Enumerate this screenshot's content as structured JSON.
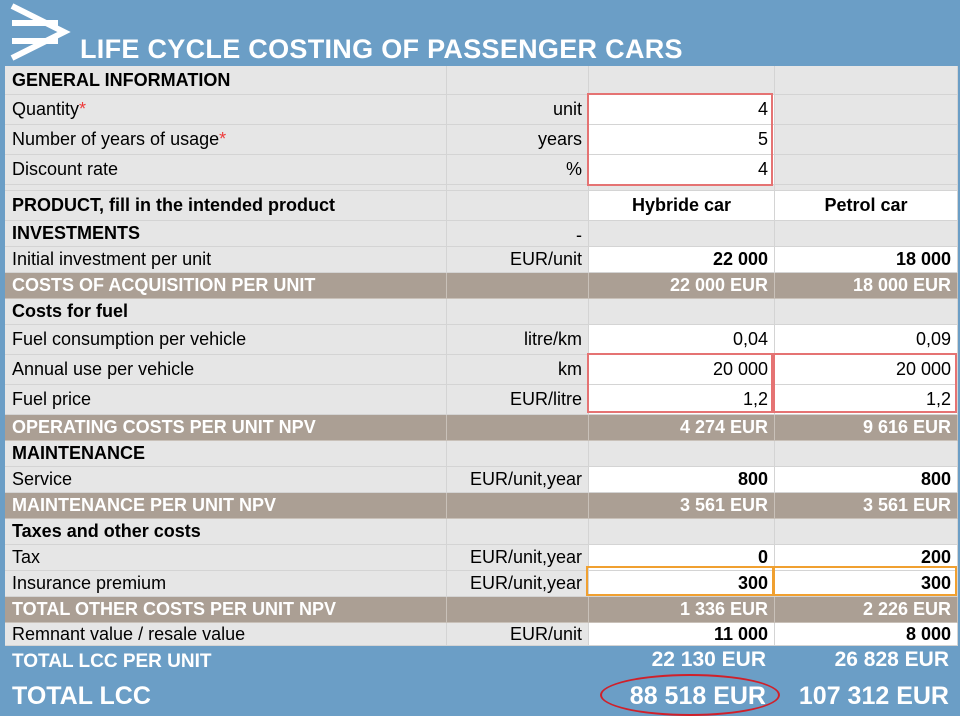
{
  "title": "LIFE CYCLE COSTING OF PASSENGER CARS",
  "rows": {
    "general": {
      "label": "GENERAL INFORMATION"
    },
    "quantity": {
      "label": "Quantity",
      "star": "*",
      "unit": "unit",
      "value": "4"
    },
    "years": {
      "label": "Number of years of usage",
      "star": "*",
      "unit": "years",
      "value": "5"
    },
    "discount": {
      "label": "Discount rate",
      "unit": "%",
      "value": "4"
    },
    "product": {
      "label": "PRODUCT, fill in the intended product",
      "hybrid": "Hybride car",
      "petrol": "Petrol car"
    },
    "investments": {
      "label": "INVESTMENTS",
      "unit": "-"
    },
    "initial": {
      "label": "Initial investment per unit",
      "unit": "EUR/unit",
      "hybrid": "22 000",
      "petrol": "18 000"
    },
    "acquisition": {
      "label": "COSTS OF ACQUISITION PER UNIT",
      "hybrid": "22 000 EUR",
      "petrol": "18 000 EUR"
    },
    "fuel_costs": {
      "label": "Costs for fuel"
    },
    "fuel_consumption": {
      "label": "Fuel consumption per vehicle",
      "unit": "litre/km",
      "hybrid": "0,04",
      "petrol": "0,09"
    },
    "annual_use": {
      "label": "Annual use per vehicle",
      "unit": "km",
      "hybrid": "20 000",
      "petrol": "20 000"
    },
    "fuel_price": {
      "label": "Fuel price",
      "unit": "EUR/litre",
      "hybrid": "1,2",
      "petrol": "1,2"
    },
    "operating": {
      "label": "OPERATING COSTS PER UNIT NPV",
      "hybrid": "4 274 EUR",
      "petrol": "9 616 EUR"
    },
    "maintenance": {
      "label": "MAINTENANCE"
    },
    "service": {
      "label": "Service",
      "unit": "EUR/unit,year",
      "hybrid": "800",
      "petrol": "800"
    },
    "maintenance_npv": {
      "label": "MAINTENANCE PER UNIT NPV",
      "hybrid": "3 561 EUR",
      "petrol": "3 561 EUR"
    },
    "taxes": {
      "label": "Taxes and other costs"
    },
    "tax": {
      "label": "Tax",
      "unit": "EUR/unit,year",
      "hybrid": "0",
      "petrol": "200"
    },
    "insurance": {
      "label": "Insurance premium",
      "unit": "EUR/unit,year",
      "hybrid": "300",
      "petrol": "300"
    },
    "other_npv": {
      "label": "TOTAL OTHER COSTS PER UNIT NPV",
      "hybrid": "1 336 EUR",
      "petrol": "2 226 EUR"
    },
    "remnant": {
      "label": "Remnant value / resale value",
      "unit": "EUR/unit",
      "hybrid": "11 000",
      "petrol": "8 000"
    }
  },
  "totals": {
    "per_unit": {
      "label": "TOTAL LCC PER UNIT",
      "hybrid": "22 130 EUR",
      "petrol": "26 828 EUR"
    },
    "total": {
      "label": "TOTAL LCC",
      "hybrid": "88 518 EUR",
      "petrol": "107 312 EUR"
    }
  },
  "colors": {
    "header": "#6b9ec6",
    "summary_row": "#ab9f94",
    "highlight_red": "#e57373",
    "highlight_orange": "#f0a030",
    "ellipse": "#d0202a"
  }
}
